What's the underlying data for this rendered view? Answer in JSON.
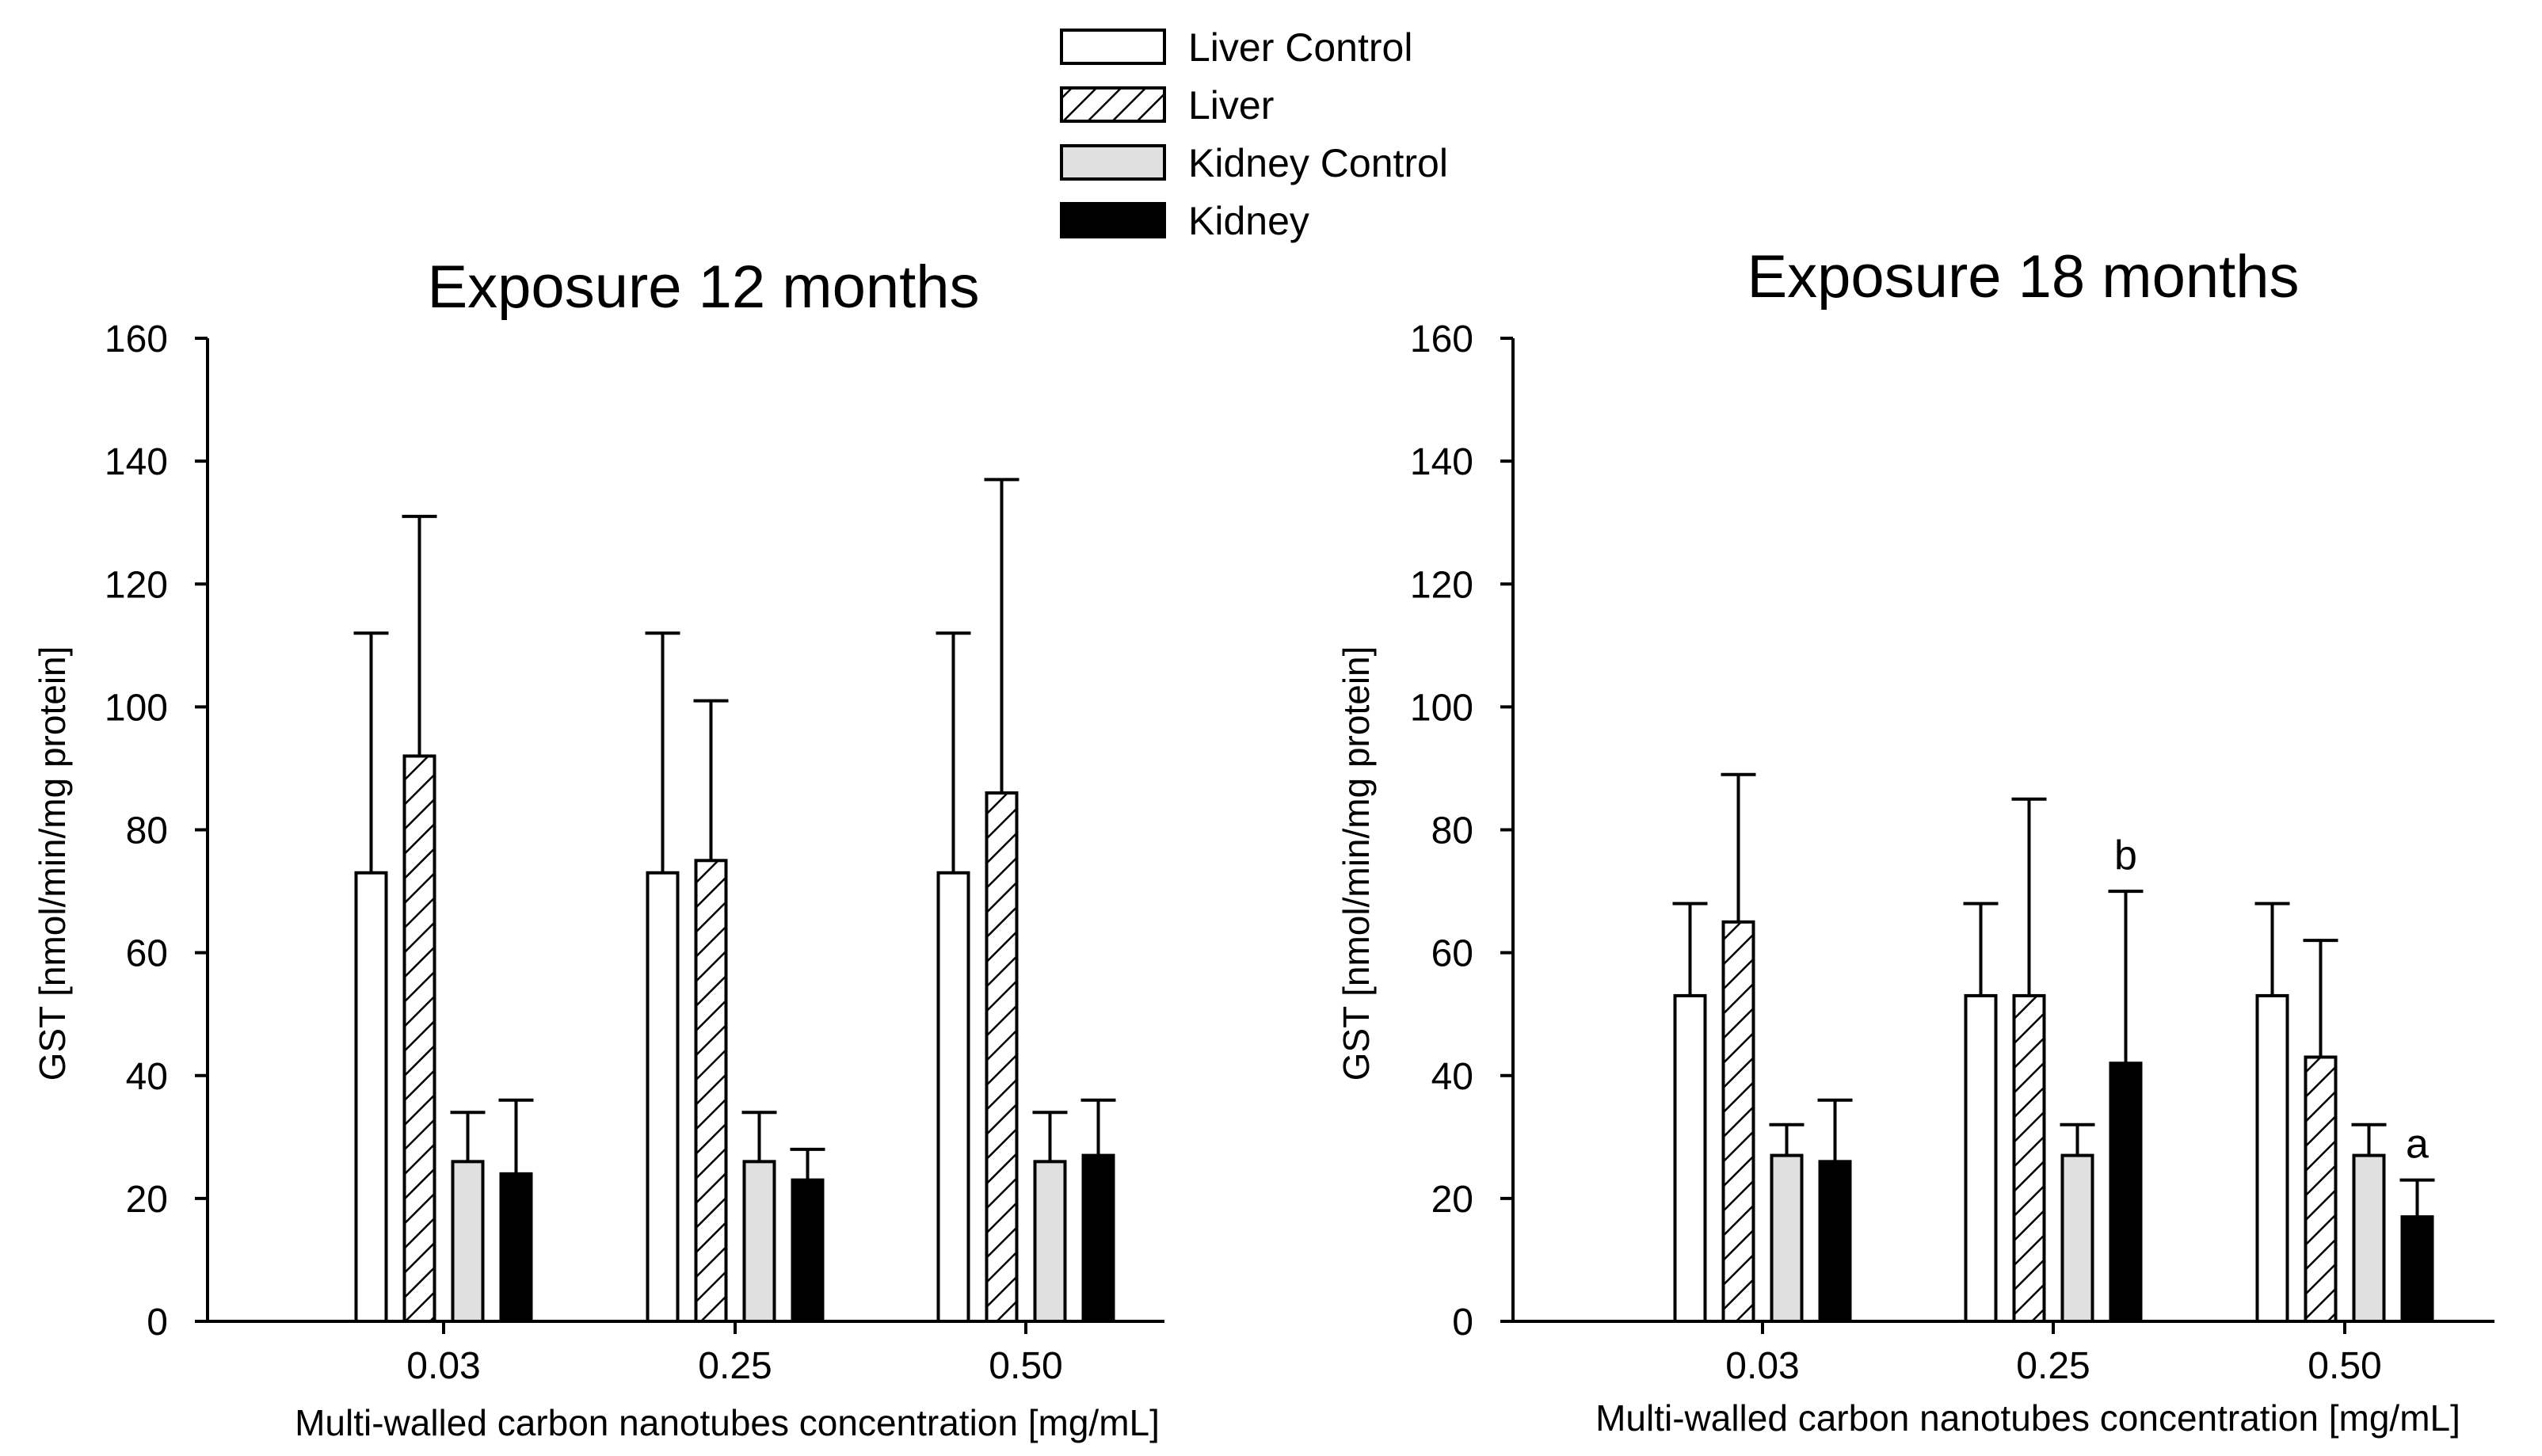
{
  "legend": [
    {
      "label": "Liver Control",
      "style": "white"
    },
    {
      "label": "Liver",
      "style": "hatch"
    },
    {
      "label": "Kidney Control",
      "style": "lightgray"
    },
    {
      "label": "Kidney",
      "style": "black"
    }
  ],
  "colors": {
    "white": "#ffffff",
    "lightgray": "#e0e0e0",
    "black": "#000000",
    "stroke": "#000000"
  },
  "chart_data": [
    {
      "type": "bar",
      "title": "Exposure 12 months",
      "xlabel": "Multi-walled carbon nanotubes concentration [mg/mL]",
      "ylabel": "GST [nmol/min/mg protein]",
      "ylim": [
        0,
        160
      ],
      "yticks": [
        "0",
        "20",
        "40",
        "60",
        "80",
        "100",
        "120",
        "140",
        "160"
      ],
      "categories": [
        "0.03",
        "0.25",
        "0.50"
      ],
      "series": [
        {
          "name": "Liver Control",
          "values": [
            73,
            73,
            73
          ],
          "errors": [
            39,
            39,
            39
          ]
        },
        {
          "name": "Liver",
          "values": [
            92,
            75,
            86
          ],
          "errors": [
            39,
            26,
            51
          ]
        },
        {
          "name": "Kidney Control",
          "values": [
            26,
            26,
            26
          ],
          "errors": [
            8,
            8,
            8
          ]
        },
        {
          "name": "Kidney",
          "values": [
            24,
            23,
            27
          ],
          "errors": [
            12,
            5,
            9
          ]
        }
      ],
      "annotations": []
    },
    {
      "type": "bar",
      "title": "Exposure 18 months",
      "xlabel": "Multi-walled carbon nanotubes concentration [mg/mL]",
      "ylabel": "GST [nmol/min/mg protein]",
      "ylim": [
        0,
        160
      ],
      "yticks": [
        "0",
        "20",
        "40",
        "60",
        "80",
        "100",
        "120",
        "140",
        "160"
      ],
      "categories": [
        "0.03",
        "0.25",
        "0.50"
      ],
      "series": [
        {
          "name": "Liver Control",
          "values": [
            53,
            53,
            53
          ],
          "errors": [
            15,
            15,
            15
          ]
        },
        {
          "name": "Liver",
          "values": [
            65,
            53,
            43
          ],
          "errors": [
            24,
            32,
            19
          ]
        },
        {
          "name": "Kidney Control",
          "values": [
            27,
            27,
            27
          ],
          "errors": [
            5,
            5,
            5
          ]
        },
        {
          "name": "Kidney",
          "values": [
            26,
            42,
            17
          ],
          "errors": [
            10,
            28,
            6
          ]
        }
      ],
      "annotations": [
        {
          "text": "b",
          "category": "0.25",
          "series": "Kidney"
        },
        {
          "text": "a",
          "category": "0.50",
          "series": "Kidney"
        }
      ]
    }
  ]
}
